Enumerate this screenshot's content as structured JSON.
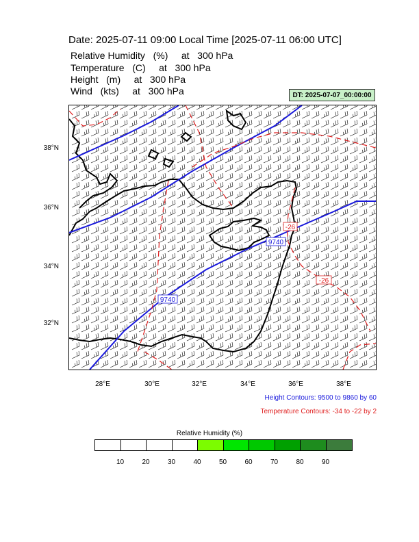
{
  "header": {
    "title": "Date: 2025-07-11  09:00 Local Time [2025-07-11  06:00 UTC]",
    "fields": [
      "Relative Humidity   (%)     at   300 hPa",
      "Temperature   (C)     at   300 hPa",
      "Height   (m)     at   300 hPa",
      "Wind   (kts)     at   300 hPa"
    ],
    "dt_label": "DT: 2025-07-07_00:00:00"
  },
  "map": {
    "lat_labels": [
      "38°N",
      "36°N",
      "34°N",
      "32°N"
    ],
    "lon_labels": [
      "28°E",
      "30°E",
      "32°E",
      "34°E",
      "36°E",
      "38°E"
    ],
    "height_contour_labels": [
      "9740",
      "9740"
    ],
    "temperature_contour_labels": [
      "-26",
      "-26"
    ],
    "colors": {
      "height_contour": "#1a1adc",
      "temperature_contour": "#e02020",
      "coastline": "#000000"
    }
  },
  "notes": {
    "height_contours": "Height Contours: 9500 to 9860 by 60",
    "temperature_contours": "Temperature Contours: -34 to -22 by 2"
  },
  "colorbar": {
    "title": "Relative Humidity  (%)",
    "ticks": [
      "10",
      "20",
      "30",
      "40",
      "50",
      "60",
      "70",
      "80",
      "90"
    ],
    "colors": [
      "#ffffff",
      "#ffffff",
      "#ffffff",
      "#ffffff",
      "#7cfc00",
      "#00e600",
      "#00c800",
      "#00a000",
      "#1e8c1e",
      "#3c7c3c"
    ]
  }
}
